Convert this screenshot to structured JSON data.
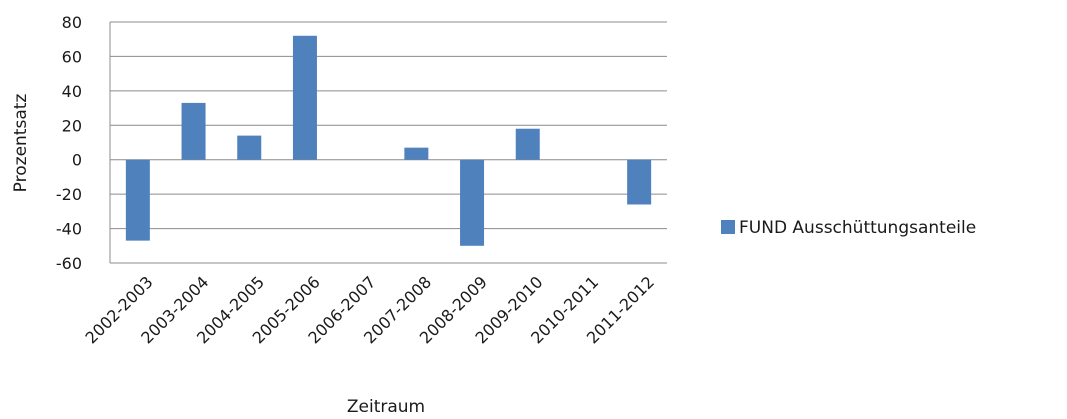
{
  "chart_data": {
    "type": "bar",
    "title": "",
    "xlabel": "Zeitraum",
    "ylabel": "Prozentsatz",
    "ylim": [
      -60,
      80
    ],
    "yticks": [
      80,
      60,
      40,
      20,
      0,
      -20,
      -40,
      -60
    ],
    "grid": true,
    "legend_position": "right",
    "categories": [
      "2002-2003",
      "2003-2004",
      "2004-2005",
      "2005-2006",
      "2006-2007",
      "2007-2008",
      "2008-2009",
      "2009-2010",
      "2010-2011",
      "2011-2012"
    ],
    "series": [
      {
        "name": "FUND Ausschüttungsanteile",
        "color": "#4f81bd",
        "values": [
          -47,
          33,
          14,
          72,
          0,
          7,
          -50,
          18,
          0,
          -26
        ]
      }
    ]
  }
}
